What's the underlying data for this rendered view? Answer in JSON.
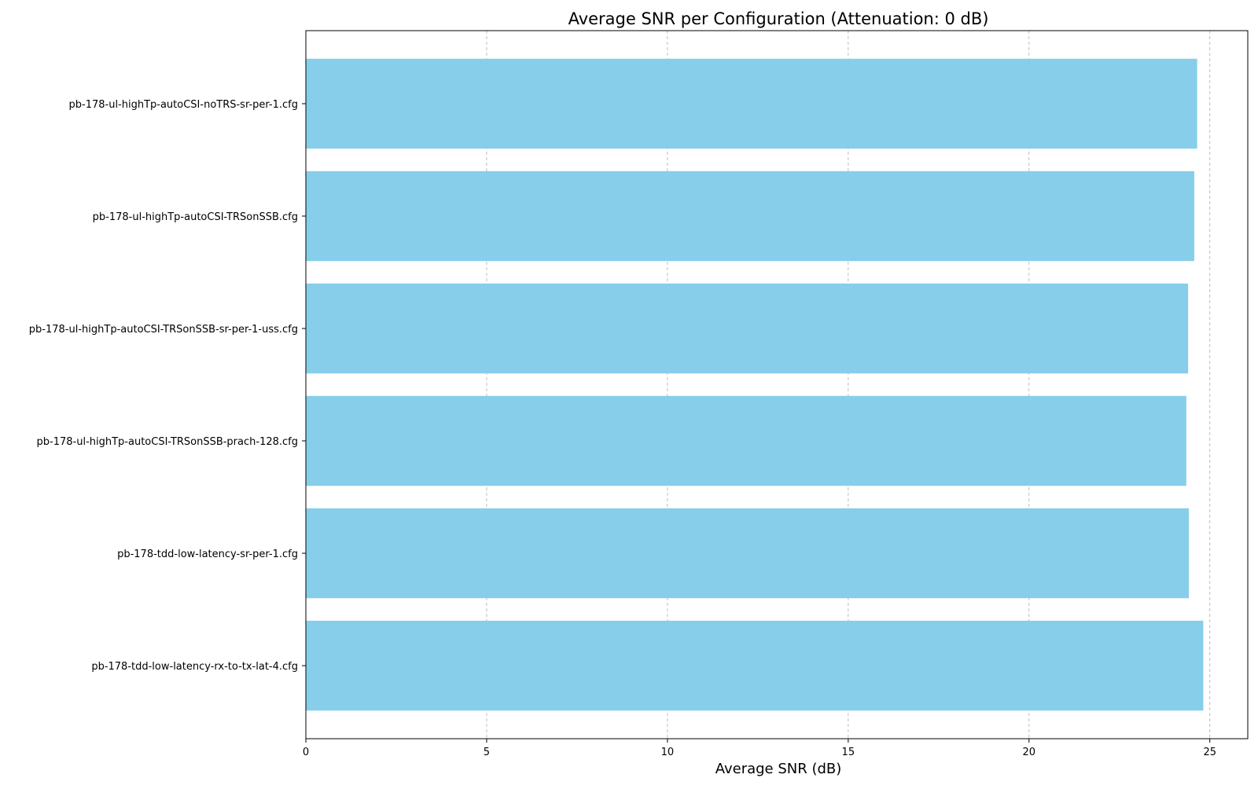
{
  "chart_data": {
    "type": "bar",
    "orientation": "horizontal",
    "title": "Average SNR per Configuration (Attenuation: 0 dB)",
    "xlabel": "Average SNR (dB)",
    "ylabel": "",
    "categories": [
      "pb-178-ul-highTp-autoCSI-noTRS-sr-per-1.cfg",
      "pb-178-ul-highTp-autoCSI-TRSonSSB.cfg",
      "pb-178-ul-highTp-autoCSI-TRSonSSB-sr-per-1-uss.cfg",
      "pb-178-ul-highTp-autoCSI-TRSonSSB-prach-128.cfg",
      "pb-178-tdd-low-latency-sr-per-1.cfg",
      "pb-178-tdd-low-latency-rx-to-tx-lat-4.cfg"
    ],
    "values": [
      24.65,
      24.57,
      24.4,
      24.35,
      24.42,
      24.82
    ],
    "xlim": [
      0,
      26.05
    ],
    "xticks": [
      "0",
      "5",
      "10",
      "15",
      "20",
      "25"
    ],
    "grid": "x, dashed",
    "bar_color": "#87CEEB",
    "grid_color": "#b0b0b0"
  }
}
